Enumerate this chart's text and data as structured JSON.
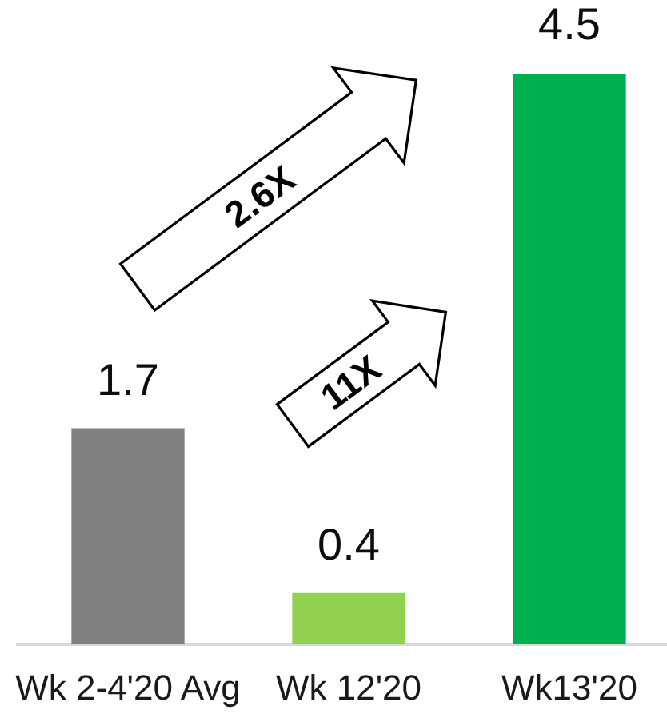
{
  "chart_data": {
    "type": "bar",
    "categories": [
      "Wk 2-4'20 Avg",
      "Wk 12'20",
      "Wk13'20"
    ],
    "values": [
      1.7,
      0.4,
      4.5
    ],
    "colors": [
      "#808080",
      "#92d050",
      "#00b050"
    ],
    "data_labels": true,
    "annotations": [
      "2.6X",
      "11X"
    ]
  }
}
